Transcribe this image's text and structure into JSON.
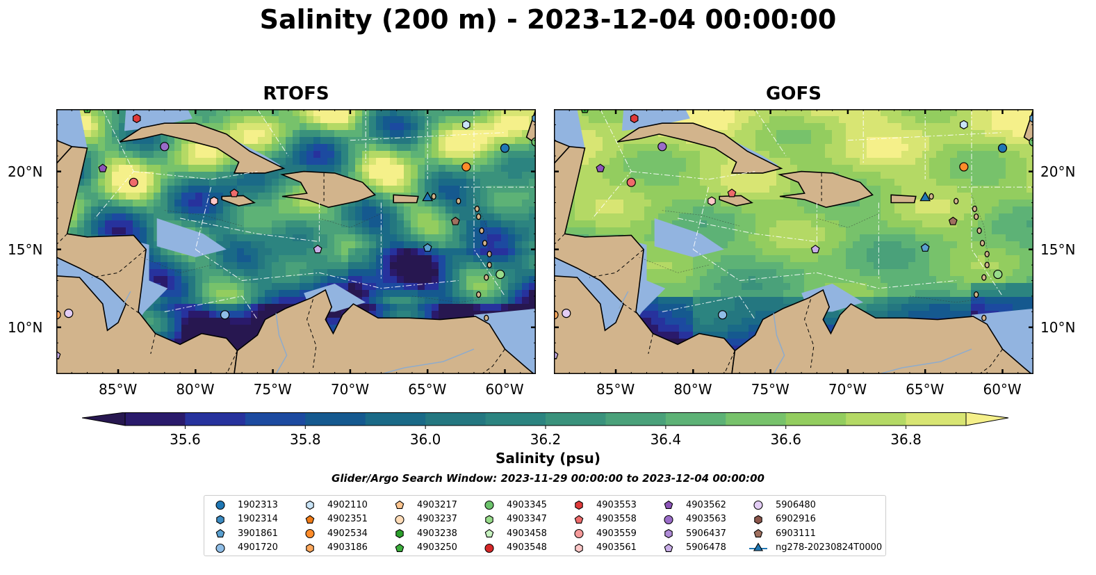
{
  "title": "Salinity (200 m) - 2023-12-04 00:00:00",
  "chart_data": [
    {
      "type": "heatmap",
      "title": "RTOFS",
      "variable": "Salinity (psu)",
      "depth": "200 m",
      "lon_range": [
        -89,
        -58
      ],
      "lat_range": [
        7,
        24
      ],
      "lon_ticks": [
        "85°W",
        "80°W",
        "75°W",
        "70°W",
        "65°W",
        "60°W"
      ],
      "lat_ticks": [
        "20°N",
        "15°N",
        "10°N"
      ],
      "lat_tick_side": "left",
      "field_summary": "strong eddy structure; salty (~36.8) bands north of the Greater Antilles and in Yucatan/Cayman region, fresher (~35.6) water in the southern and eastern Caribbean"
    },
    {
      "type": "heatmap",
      "title": "GOFS",
      "variable": "Salinity (psu)",
      "depth": "200 m",
      "lon_range": [
        -89,
        -58
      ],
      "lat_range": [
        7,
        24
      ],
      "lon_ticks": [
        "85°W",
        "80°W",
        "75°W",
        "70°W",
        "65°W",
        "60°W"
      ],
      "lat_ticks": [
        "20°N",
        "15°N",
        "10°N"
      ],
      "lat_tick_side": "right",
      "field_summary": "smoother field; mostly 36.4–36.8 across the basin with fresher values (~35.6) along the southwestern and southeastern margins"
    }
  ],
  "colorbar": {
    "label": "Salinity (psu)",
    "min": 35.5,
    "max": 36.9,
    "step": 0.1,
    "extend": "both",
    "ticks": [
      "35.6",
      "35.8",
      "36.0",
      "36.2",
      "36.4",
      "36.6",
      "36.8"
    ],
    "colors": [
      "#2a1a6b",
      "#27329d",
      "#1c4aa0",
      "#15598f",
      "#1a6a87",
      "#247780",
      "#2c8480",
      "#3a927c",
      "#4aa17a",
      "#5db276",
      "#77c26b",
      "#93cd5f",
      "#b4d965",
      "#d8e573"
    ],
    "under_color": "#271750",
    "over_color": "#f5f08a"
  },
  "search_window": "Glider/Argo Search Window: 2023-11-29 00:00:00 to 2023-12-04 00:00:00",
  "colors": {
    "land": "#d2b48c",
    "shallow": "#92b4e0",
    "coast": "#000000"
  },
  "legend": [
    {
      "label": "1902313",
      "marker": "circle",
      "color": "#1f77b4"
    },
    {
      "label": "1902314",
      "marker": "hexagon",
      "color": "#3b8bc2"
    },
    {
      "label": "3901861",
      "marker": "pentagon",
      "color": "#5aa0d0"
    },
    {
      "label": "4901720",
      "marker": "circle",
      "color": "#8fbde6"
    },
    {
      "label": "4902110",
      "marker": "hexagon",
      "color": "#c9e4f7"
    },
    {
      "label": "4902351",
      "marker": "pentagon",
      "color": "#f07b16"
    },
    {
      "label": "4902534",
      "marker": "circle",
      "color": "#ff8c2a"
    },
    {
      "label": "4903186",
      "marker": "hexagon",
      "color": "#ffa85c"
    },
    {
      "label": "4903217",
      "marker": "pentagon",
      "color": "#ffc690"
    },
    {
      "label": "4903237",
      "marker": "circle",
      "color": "#ffdcb8"
    },
    {
      "label": "4903238",
      "marker": "hexagon",
      "color": "#2ca02c"
    },
    {
      "label": "4903250",
      "marker": "pentagon",
      "color": "#3cae3c"
    },
    {
      "label": "4903345",
      "marker": "circle",
      "color": "#6cc36c"
    },
    {
      "label": "4903347",
      "marker": "hexagon",
      "color": "#98dc8a"
    },
    {
      "label": "4903458",
      "marker": "pentagon",
      "color": "#c7f2c0"
    },
    {
      "label": "4903548",
      "marker": "circle",
      "color": "#d62728"
    },
    {
      "label": "4903553",
      "marker": "hexagon",
      "color": "#e03a3a"
    },
    {
      "label": "4903558",
      "marker": "pentagon",
      "color": "#ee6b6b"
    },
    {
      "label": "4903559",
      "marker": "circle",
      "color": "#f59a9a"
    },
    {
      "label": "4903561",
      "marker": "hexagon",
      "color": "#fcc7c7"
    },
    {
      "label": "4903562",
      "marker": "pentagon",
      "color": "#8c54b8"
    },
    {
      "label": "4903563",
      "marker": "circle",
      "color": "#9a6cc8"
    },
    {
      "label": "5906437",
      "marker": "hexagon",
      "color": "#b08cd8"
    },
    {
      "label": "5906478",
      "marker": "pentagon",
      "color": "#c9aee8"
    },
    {
      "label": "5906480",
      "marker": "circle",
      "color": "#e3cdf5"
    },
    {
      "label": "6902916",
      "marker": "hexagon",
      "color": "#8c564b"
    },
    {
      "label": "6903111",
      "marker": "pentagon",
      "color": "#a0705f"
    },
    {
      "label": "ng278-20230824T0000",
      "marker": "triangle",
      "color": "#1f77b4"
    }
  ],
  "floats": [
    {
      "lon": -83.8,
      "lat": 23.4,
      "marker": "hexagon",
      "color": "#e03a3a"
    },
    {
      "lon": -82.0,
      "lat": 21.6,
      "marker": "circle",
      "color": "#9a6cc8"
    },
    {
      "lon": -86.0,
      "lat": 20.2,
      "marker": "pentagon",
      "color": "#8c54b8"
    },
    {
      "lon": -84.0,
      "lat": 19.3,
      "marker": "circle",
      "color": "#ee6b6b"
    },
    {
      "lon": -78.8,
      "lat": 18.1,
      "marker": "hexagon",
      "color": "#fcc7c7"
    },
    {
      "lon": -77.5,
      "lat": 18.6,
      "marker": "pentagon",
      "color": "#ee6b6b"
    },
    {
      "lon": -62.5,
      "lat": 23.0,
      "marker": "hexagon",
      "color": "#c9e4f7"
    },
    {
      "lon": -60.0,
      "lat": 21.5,
      "marker": "circle",
      "color": "#1f77b4"
    },
    {
      "lon": -62.5,
      "lat": 20.3,
      "marker": "circle",
      "color": "#ff8c2a"
    },
    {
      "lon": -63.2,
      "lat": 16.8,
      "marker": "pentagon",
      "color": "#a0705f"
    },
    {
      "lon": -65.0,
      "lat": 15.1,
      "marker": "pentagon",
      "color": "#5aa0d0"
    },
    {
      "lon": -72.1,
      "lat": 15.0,
      "marker": "pentagon",
      "color": "#c9aee8"
    },
    {
      "lon": -60.3,
      "lat": 13.4,
      "marker": "circle",
      "color": "#98dc8a"
    },
    {
      "lon": -78.1,
      "lat": 10.8,
      "marker": "circle",
      "color": "#8fbde6"
    },
    {
      "lon": -88.2,
      "lat": 10.9,
      "marker": "circle",
      "color": "#e3cdf5"
    },
    {
      "lon": -89.0,
      "lat": 10.8,
      "marker": "circle",
      "color": "#ffa85c"
    },
    {
      "lon": -89.0,
      "lat": 8.2,
      "marker": "pentagon",
      "color": "#c9aee8"
    },
    {
      "lon": -87.0,
      "lat": 24.0,
      "marker": "pentagon",
      "color": "#3cae3c"
    },
    {
      "lon": -58.0,
      "lat": 23.4,
      "marker": "hexagon",
      "color": "#5aa0d0"
    },
    {
      "lon": -58.0,
      "lat": 21.9,
      "marker": "circle",
      "color": "#6cc36c"
    }
  ],
  "glider": {
    "lon": -65.0,
    "lat": 18.3,
    "marker": "triangle",
    "color": "#1f77b4"
  }
}
